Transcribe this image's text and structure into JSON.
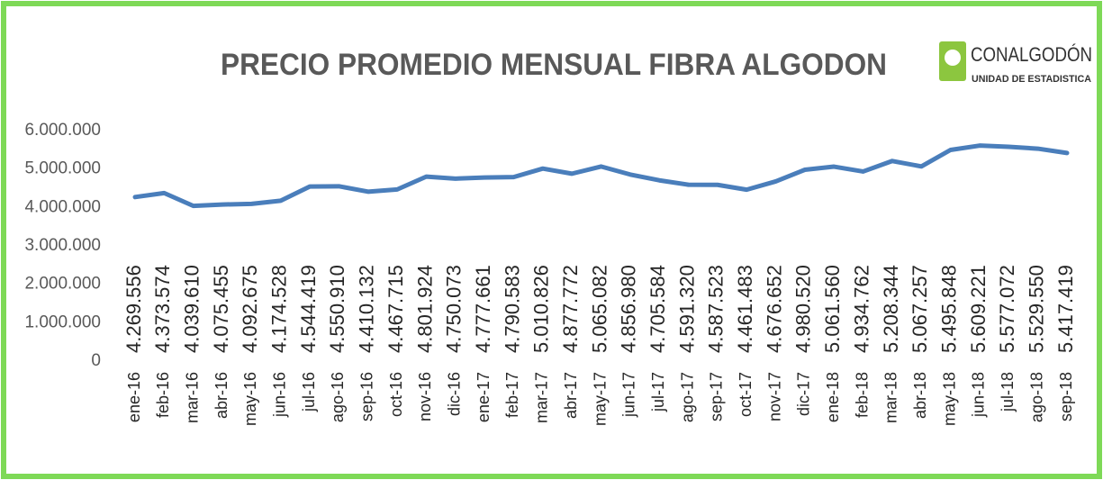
{
  "chart_data": {
    "type": "line",
    "title": "PRECIO PROMEDIO MENSUAL FIBRA ALGODON",
    "logo": {
      "name": "CONALGODÓN",
      "subtitle": "UNIDAD DE ESTADISTICA"
    },
    "categories": [
      "ene-16",
      "feb-16",
      "mar-16",
      "abr-16",
      "may-16",
      "jun-16",
      "jul-16",
      "ago-16",
      "sep-16",
      "oct-16",
      "nov-16",
      "dic-16",
      "ene-17",
      "feb-17",
      "mar-17",
      "abr-17",
      "may-17",
      "jun-17",
      "jul-17",
      "ago-17",
      "sep-17",
      "oct-17",
      "nov-17",
      "dic-17",
      "ene-18",
      "feb-18",
      "mar-18",
      "abr-18",
      "may-18",
      "jun-18",
      "jul-18",
      "ago-18",
      "sep-18"
    ],
    "series": [
      {
        "name": "Precio",
        "color": "#4a7ebb",
        "values": [
          4269556,
          4373574,
          4039610,
          4075455,
          4092675,
          4174528,
          4544419,
          4550910,
          4410132,
          4467715,
          4801924,
          4750073,
          4777661,
          4790583,
          5010826,
          4877772,
          5065082,
          4856980,
          4705584,
          4591320,
          4587523,
          4461483,
          4676652,
          4980520,
          5061560,
          4934762,
          5208344,
          5067257,
          5495848,
          5609221,
          5577072,
          5529550,
          5417419
        ],
        "value_labels": [
          "4.269.556",
          "4.373.574",
          "4.039.610",
          "4.075.455",
          "4.092.675",
          "4.174.528",
          "4.544.419",
          "4.550.910",
          "4.410.132",
          "4.467.715",
          "4.801.924",
          "4.750.073",
          "4.777.661",
          "4.790.583",
          "5.010.826",
          "4.877.772",
          "5.065.082",
          "4.856.980",
          "4.705.584",
          "4.591.320",
          "4.587.523",
          "4.461.483",
          "4.676.652",
          "4.980.520",
          "5.061.560",
          "4.934.762",
          "5.208.344",
          "5.067.257",
          "5.495.848",
          "5.609.221",
          "5.577.072",
          "5.529.550",
          "5.417.419"
        ]
      }
    ],
    "ylim": [
      0,
      6000000
    ],
    "yticks": [
      0,
      {
        "value": 1000000,
        "label": "1.000.000"
      },
      {
        "value": 2000000,
        "label": "2.000.000"
      },
      {
        "value": 3000000,
        "label": "3.000.000"
      },
      {
        "value": 4000000,
        "label": "4.000.000"
      },
      {
        "value": 5000000,
        "label": "5.000.000"
      },
      {
        "value": 6000000,
        "label": "6.000.000"
      }
    ],
    "grid": false
  }
}
